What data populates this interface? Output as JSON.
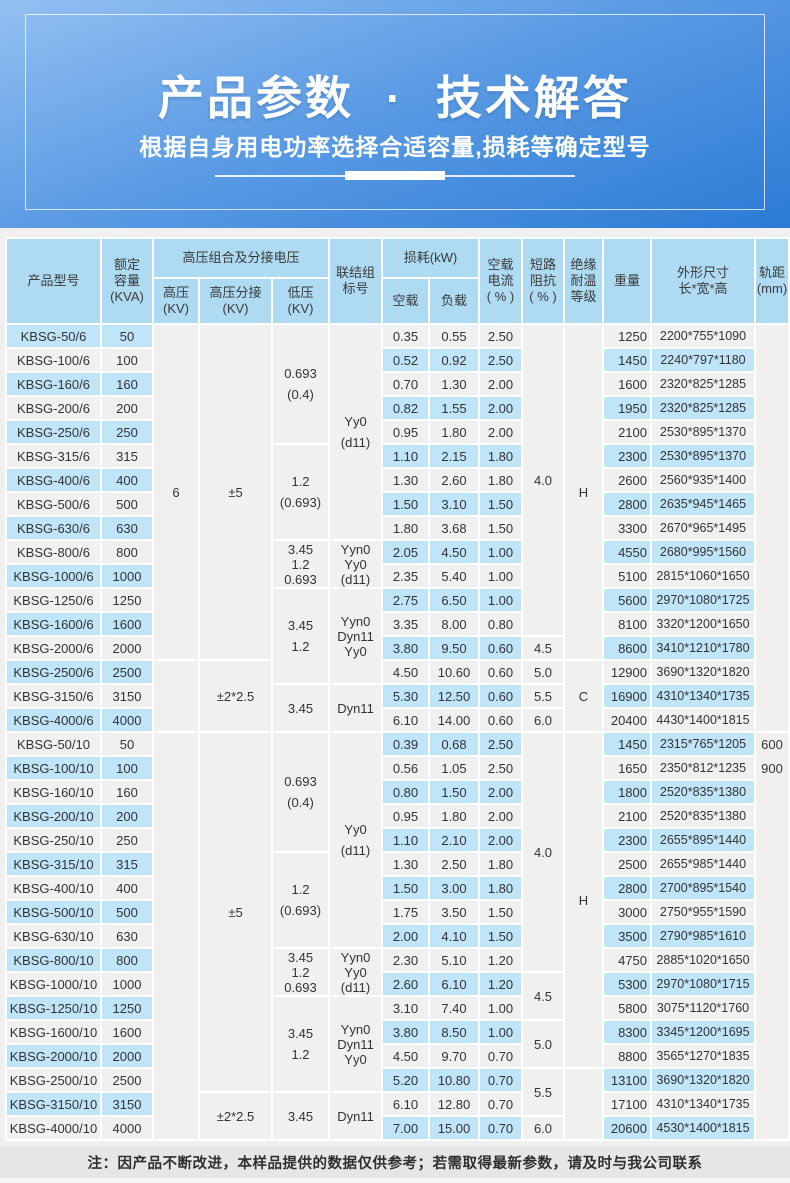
{
  "banner": {
    "title": "产品参数 · 技术解答",
    "subtitle": "根据自身用电功率选择合适容量,损耗等确定型号"
  },
  "note": "注：因产品不断改进，本样品提供的数据仅供参考；若需取得最新参数，请及时与我公司联系",
  "colors": {
    "banner_blue": "#2b7bd5",
    "header_bg": "#aedaf2",
    "stripe_blue": "#c0e5f8",
    "cell_plain": "#f0f0f0",
    "text": "#333333"
  },
  "table": {
    "header_row1": [
      {
        "text": "产品型号",
        "rowspan": 2
      },
      {
        "lines": [
          "额定",
          "容量",
          "(KVA)"
        ],
        "rowspan": 2
      },
      {
        "text": "高压组合及分接电压",
        "colspan": 3
      },
      {
        "lines": [
          "联结组",
          "标号"
        ],
        "rowspan": 2
      },
      {
        "text": "损耗(kW)",
        "colspan": 2
      },
      {
        "lines": [
          "空载",
          "电流",
          "( % )"
        ],
        "rowspan": 2
      },
      {
        "lines": [
          "短路",
          "阻抗",
          "( % )"
        ],
        "rowspan": 2
      },
      {
        "lines": [
          "绝缘",
          "耐温",
          "等级"
        ],
        "rowspan": 2
      },
      {
        "text": "重量",
        "rowspan": 2
      },
      {
        "lines": [
          "外形尺寸",
          "长*宽*高"
        ],
        "rowspan": 2
      },
      {
        "lines": [
          "轨距",
          "(mm)"
        ],
        "rowspan": 2
      }
    ],
    "header_row2": [
      {
        "lines": [
          "高压",
          "(KV)"
        ]
      },
      {
        "lines": [
          "高压分接",
          "(KV)"
        ]
      },
      {
        "lines": [
          "低压",
          "(KV)"
        ]
      },
      {
        "text": "空载"
      },
      {
        "text": "负载"
      }
    ],
    "sections": [
      {
        "rows": [
          [
            "KBSG-50/6",
            "50",
            "0.35",
            "0.55",
            "2.50",
            "1250",
            "2200*755*1090"
          ],
          [
            "KBSG-100/6",
            "100",
            "0.52",
            "0.92",
            "2.50",
            "1450",
            "2240*797*1180"
          ],
          [
            "KBSG-160/6",
            "160",
            "0.70",
            "1.30",
            "2.00",
            "1600",
            "2320*825*1285"
          ],
          [
            "KBSG-200/6",
            "200",
            "0.82",
            "1.55",
            "2.00",
            "1950",
            "2320*825*1285"
          ],
          [
            "KBSG-250/6",
            "250",
            "0.95",
            "1.80",
            "2.00",
            "2100",
            "2530*895*1370"
          ],
          [
            "KBSG-315/6",
            "315",
            "1.10",
            "2.15",
            "1.80",
            "2300",
            "2530*895*1370"
          ],
          [
            "KBSG-400/6",
            "400",
            "1.30",
            "2.60",
            "1.80",
            "2600",
            "2560*935*1400"
          ],
          [
            "KBSG-500/6",
            "500",
            "1.50",
            "3.10",
            "1.50",
            "2800",
            "2635*945*1465"
          ],
          [
            "KBSG-630/6",
            "630",
            "1.80",
            "3.68",
            "1.50",
            "3300",
            "2670*965*1495"
          ],
          [
            "KBSG-800/6",
            "800",
            "2.05",
            "4.50",
            "1.00",
            "4550",
            "2680*995*1560"
          ],
          [
            "KBSG-1000/6",
            "1000",
            "2.35",
            "5.40",
            "1.00",
            "5100",
            "2815*1060*1650"
          ],
          [
            "KBSG-1250/6",
            "1250",
            "2.75",
            "6.50",
            "1.00",
            "5600",
            "2970*1080*1725"
          ],
          [
            "KBSG-1600/6",
            "1600",
            "3.35",
            "8.00",
            "0.80",
            "8100",
            "3320*1200*1650"
          ],
          [
            "KBSG-2000/6",
            "2000",
            "3.80",
            "9.50",
            "0.60",
            "8600",
            "3410*1210*1780"
          ],
          [
            "KBSG-2500/6",
            "2500",
            "4.50",
            "10.60",
            "0.60",
            "12900",
            "3690*1320*1820"
          ],
          [
            "KBSG-3150/6",
            "3150",
            "5.30",
            "12.50",
            "0.60",
            "16900",
            "4310*1340*1735"
          ],
          [
            "KBSG-4000/6",
            "4000",
            "6.10",
            "14.00",
            "0.60",
            "20400",
            "4430*1400*1815"
          ]
        ],
        "spans": {
          "hv": [
            {
              "text": "6",
              "span": 14
            },
            {
              "text": "",
              "span": 3
            }
          ],
          "tap": [
            {
              "text": "±5",
              "span": 14
            },
            {
              "text": "±2*2.5",
              "span": 3
            }
          ],
          "lv": [
            {
              "lines": [
                "0.693",
                "(0.4)"
              ],
              "span": 5
            },
            {
              "lines": [
                "1.2",
                "(0.693)"
              ],
              "span": 4
            },
            {
              "lines": [
                "3.45",
                "1.2",
                "0.693"
              ],
              "span": 2
            },
            {
              "lines": [
                "3.45",
                "1.2"
              ],
              "span": 4
            },
            {
              "lines": [
                "3.45"
              ],
              "span": 2
            }
          ],
          "group": [
            {
              "lines": [
                "Yy0",
                "(d11)"
              ],
              "span": 9
            },
            {
              "lines": [
                "Yyn0",
                "Yy0",
                "(d11)"
              ],
              "span": 2
            },
            {
              "lines": [
                "Yyn0",
                "Dyn11",
                "Yy0"
              ],
              "span": 4
            },
            {
              "lines": [
                "Dyn11"
              ],
              "span": 2
            }
          ],
          "impedance": [
            {
              "text": "4.0",
              "span": 13
            },
            {
              "text": "4.5",
              "span": 1
            },
            {
              "text": "5.0",
              "span": 1
            },
            {
              "text": "5.5",
              "span": 1
            },
            {
              "text": "6.0",
              "span": 1
            }
          ],
          "insul": [
            {
              "text": "H",
              "span": 14
            },
            {
              "text": "C",
              "span": 3
            }
          ],
          "gauge": [
            {
              "text": "",
              "span": 17
            }
          ]
        }
      },
      {
        "rows": [
          [
            "KBSG-50/10",
            "50",
            "0.39",
            "0.68",
            "2.50",
            "1450",
            "2315*765*1205"
          ],
          [
            "KBSG-100/10",
            "100",
            "0.56",
            "1.05",
            "2.50",
            "1650",
            "2350*812*1235"
          ],
          [
            "KBSG-160/10",
            "160",
            "0.80",
            "1.50",
            "2.00",
            "1800",
            "2520*835*1380"
          ],
          [
            "KBSG-200/10",
            "200",
            "0.95",
            "1.80",
            "2.00",
            "2100",
            "2520*835*1380"
          ],
          [
            "KBSG-250/10",
            "250",
            "1.10",
            "2.10",
            "2.00",
            "2300",
            "2655*895*1440"
          ],
          [
            "KBSG-315/10",
            "315",
            "1.30",
            "2.50",
            "1.80",
            "2500",
            "2655*985*1440"
          ],
          [
            "KBSG-400/10",
            "400",
            "1.50",
            "3.00",
            "1.80",
            "2800",
            "2700*895*1540"
          ],
          [
            "KBSG-500/10",
            "500",
            "1.75",
            "3.50",
            "1.50",
            "3000",
            "2750*955*1590"
          ],
          [
            "KBSG-630/10",
            "630",
            "2.00",
            "4.10",
            "1.50",
            "3500",
            "2790*985*1610"
          ],
          [
            "KBSG-800/10",
            "800",
            "2.30",
            "5.10",
            "1.20",
            "4750",
            "2885*1020*1650"
          ],
          [
            "KBSG-1000/10",
            "1000",
            "2.60",
            "6.10",
            "1.20",
            "5300",
            "2970*1080*1715"
          ],
          [
            "KBSG-1250/10",
            "1250",
            "3.10",
            "7.40",
            "1.00",
            "5800",
            "3075*1120*1760"
          ],
          [
            "KBSG-1600/10",
            "1600",
            "3.80",
            "8.50",
            "1.00",
            "8300",
            "3345*1200*1695"
          ],
          [
            "KBSG-2000/10",
            "2000",
            "4.50",
            "9.70",
            "0.70",
            "8800",
            "3565*1270*1835"
          ],
          [
            "KBSG-2500/10",
            "2500",
            "5.20",
            "10.80",
            "0.70",
            "13100",
            "3690*1320*1820"
          ],
          [
            "KBSG-3150/10",
            "3150",
            "6.10",
            "12.80",
            "0.70",
            "17100",
            "4310*1340*1735"
          ],
          [
            "KBSG-4000/10",
            "4000",
            "7.00",
            "15.00",
            "0.70",
            "20600",
            "4530*1400*1815"
          ]
        ],
        "spans": {
          "hv": [
            {
              "text": "",
              "span": 17
            }
          ],
          "tap": [
            {
              "text": "±5",
              "span": 15
            },
            {
              "text": "±2*2.5",
              "span": 2
            }
          ],
          "lv": [
            {
              "lines": [
                "0.693",
                "(0.4)"
              ],
              "span": 5
            },
            {
              "lines": [
                "1.2",
                "(0.693)"
              ],
              "span": 4
            },
            {
              "lines": [
                "3.45",
                "1.2",
                "0.693"
              ],
              "span": 2
            },
            {
              "lines": [
                "3.45",
                "1.2"
              ],
              "span": 4
            },
            {
              "lines": [
                "3.45"
              ],
              "span": 2
            }
          ],
          "group": [
            {
              "lines": [
                "Yy0",
                "(d11)"
              ],
              "span": 9
            },
            {
              "lines": [
                "Yyn0",
                "Yy0",
                "(d11)"
              ],
              "span": 2
            },
            {
              "lines": [
                "Yyn0",
                "Dyn11",
                "Yy0"
              ],
              "span": 4
            },
            {
              "lines": [
                "Dyn11"
              ],
              "span": 2
            }
          ],
          "impedance": [
            {
              "text": "4.0",
              "span": 10
            },
            {
              "text": "4.5",
              "span": 2
            },
            {
              "text": "5.0",
              "span": 2
            },
            {
              "text": "5.5",
              "span": 2
            },
            {
              "text": "6.0",
              "span": 1
            }
          ],
          "insul": [
            {
              "text": "H",
              "span": 14
            },
            {
              "text": "",
              "span": 3
            }
          ],
          "gauge": [
            {
              "lines": [
                "600",
                "900"
              ],
              "span": 17,
              "top": true
            }
          ]
        }
      }
    ]
  }
}
